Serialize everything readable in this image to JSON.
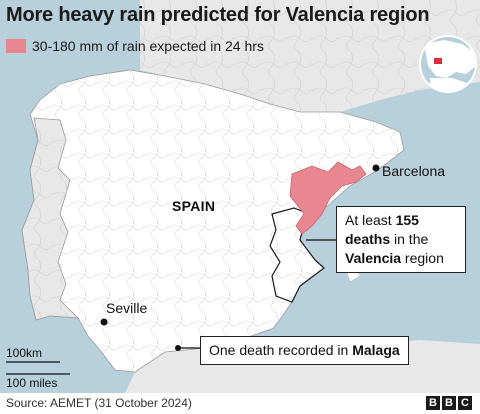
{
  "title": "More heavy rain predicted for Valencia region",
  "legend": {
    "label": "30-180 mm of rain expected in 24 hrs",
    "color": "#e8878f"
  },
  "places": {
    "country": "SPAIN",
    "barcelona": "Barcelona",
    "seville": "Seville"
  },
  "callouts": {
    "valencia": {
      "line1_pre": "At least ",
      "line1_bold": "155",
      "line2_bold": "deaths",
      "line2_post": " in the",
      "line3_bold": "Valencia",
      "line3_post": " region"
    },
    "malaga": {
      "pre": "One death recorded in ",
      "bold": "Malaga"
    }
  },
  "scale": {
    "km": "100km",
    "miles": "100 miles"
  },
  "source": "Source: AEMET (31 October 2024)",
  "brand": [
    "B",
    "B",
    "C"
  ],
  "colors": {
    "sea": "#b8cfdc",
    "spain_land": "#ffffff",
    "other_land": "#e8e8e8",
    "rain": "#e8878f"
  },
  "inset": {
    "icon": "globe-locator-icon"
  }
}
